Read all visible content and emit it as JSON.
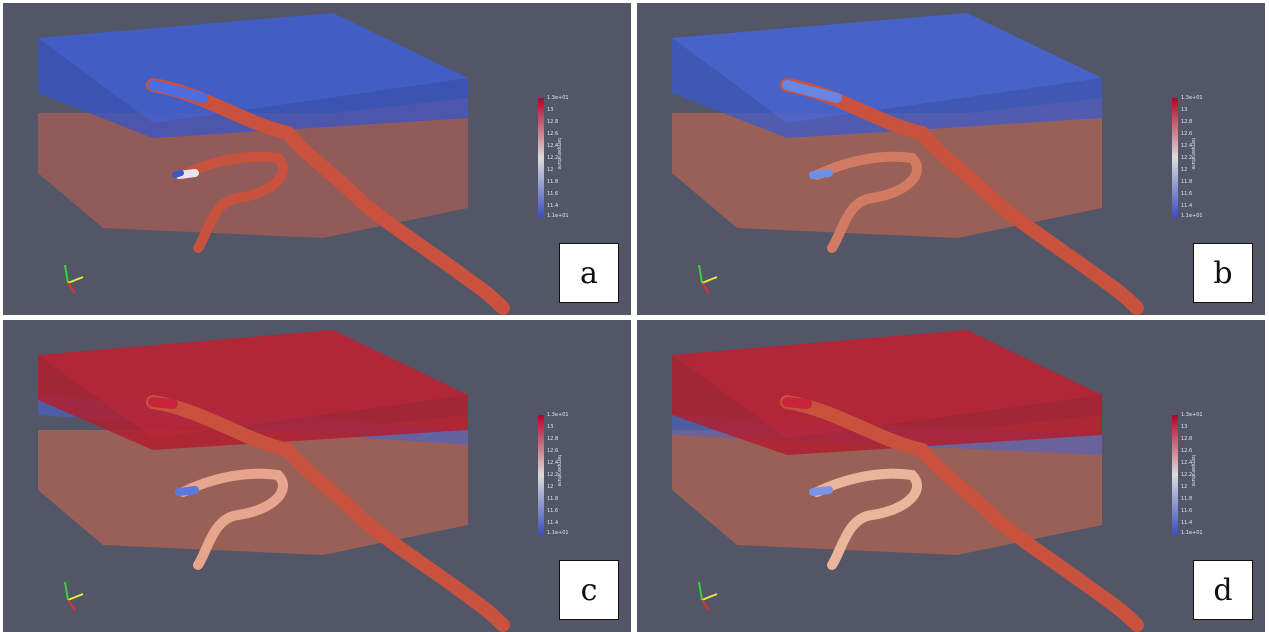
{
  "panels": [
    {
      "label": "a",
      "top_color": "#2f4fc4",
      "bottom_color": "#d0654b",
      "colorbar_flip": false
    },
    {
      "label": "b",
      "top_color": "#3353c8",
      "bottom_color": "#d46a52",
      "colorbar_flip": true
    },
    {
      "label": "c",
      "top_color": "#b31b2c",
      "bottom_color": "#d46a52",
      "colorbar_flip": true
    },
    {
      "label": "d",
      "top_color": "#b31b2c",
      "bottom_color": "#d46a52",
      "colorbar_flip": true
    }
  ],
  "colorbar": {
    "title": "temperature",
    "ticks_a": [
      "1.3e+01",
      "13",
      "12.8",
      "12.6",
      "12.4",
      "12.2",
      "12",
      "11.8",
      "11.6",
      "11.4",
      "1.1e+01"
    ],
    "ticks": [
      "1.3e+01",
      "13",
      "12.8",
      "12.6",
      "12.4",
      "12.2",
      "12",
      "11.8",
      "11.6",
      "11.4",
      "1.1e+01"
    ]
  },
  "colors": {
    "background": "#525667",
    "hot": "#b40426",
    "cold": "#3b4cc0",
    "neutral": "#dddddd"
  }
}
